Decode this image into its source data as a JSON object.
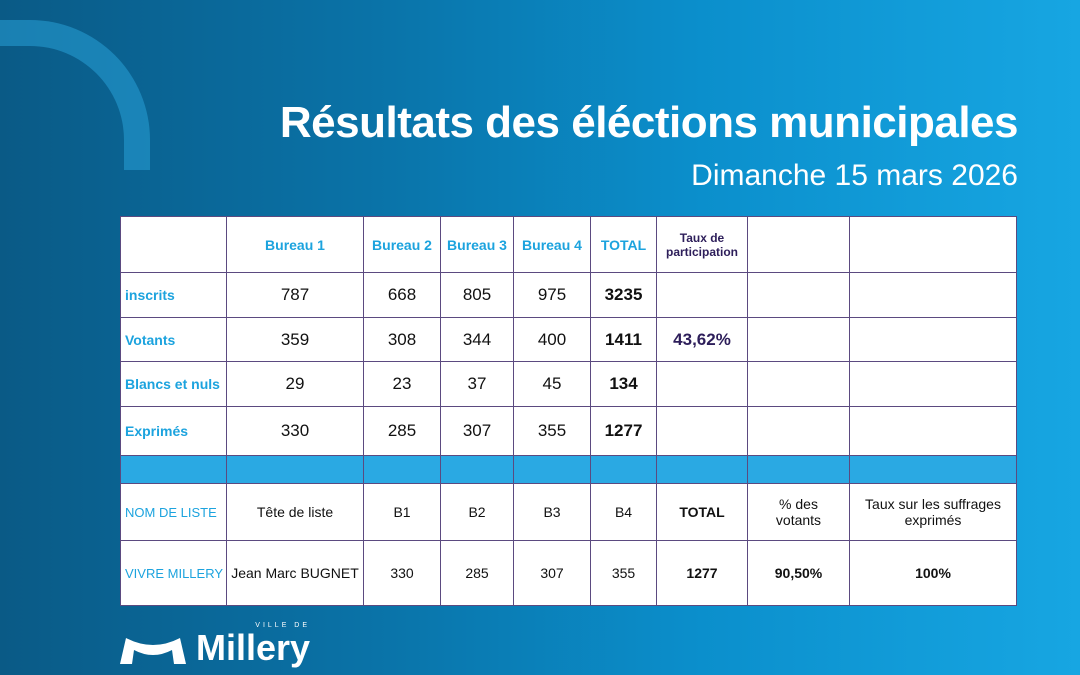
{
  "header": {
    "title": "Résultats des éléctions municipales",
    "subtitle": "Dimanche 15 mars 2026"
  },
  "table1": {
    "headers": [
      "",
      "Bureau 1",
      "Bureau 2",
      "Bureau 3",
      "Bureau 4",
      "TOTAL",
      "Taux de participation",
      "",
      ""
    ],
    "rows": [
      {
        "label": "inscrits",
        "values": [
          "787",
          "668",
          "805",
          "975"
        ],
        "total": "3235",
        "rate": ""
      },
      {
        "label": "Votants",
        "values": [
          "359",
          "308",
          "344",
          "400"
        ],
        "total": "1411",
        "rate": "43,62%"
      },
      {
        "label": "Blancs et nuls",
        "values": [
          "29",
          "23",
          "37",
          "45"
        ],
        "total": "134",
        "rate": ""
      },
      {
        "label": "Exprimés",
        "values": [
          "330",
          "285",
          "307",
          "355"
        ],
        "total": "1277",
        "rate": ""
      }
    ]
  },
  "table2": {
    "headers": [
      "NOM DE LISTE",
      "Tête de liste",
      "B1",
      "B2",
      "B3",
      "B4",
      "TOTAL",
      "% des votants",
      "Taux sur les suffrages exprimés"
    ],
    "rows": [
      {
        "cells": [
          "VIVRE MILLERY",
          "Jean Marc BUGNET",
          "330",
          "285",
          "307",
          "355",
          "1277",
          "90,50%",
          "100%"
        ]
      }
    ]
  },
  "logo": {
    "name": "Millery",
    "prefix": "VILLE DE"
  }
}
